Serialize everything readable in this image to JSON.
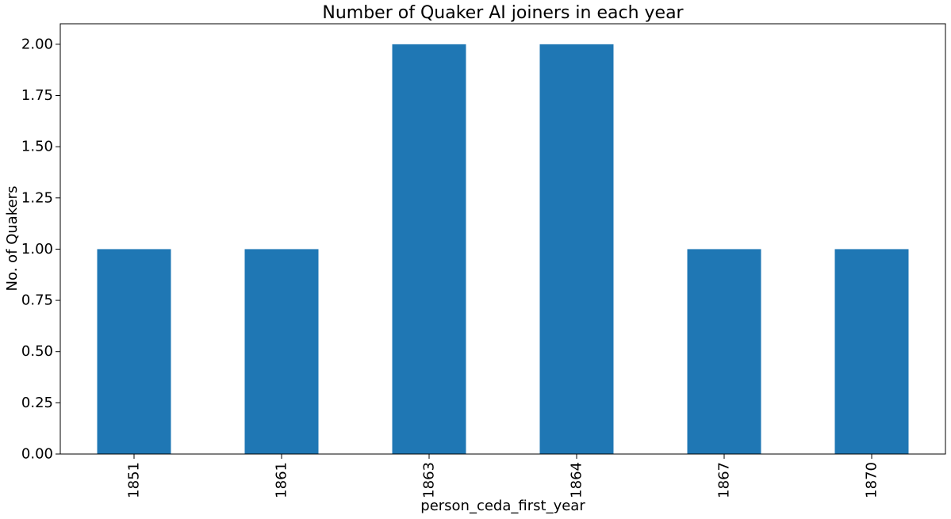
{
  "chart_data": {
    "type": "bar",
    "title": "Number of Quaker AI joiners in each year",
    "xlabel": "person_ceda_first_year",
    "ylabel": "No. of Quakers",
    "categories": [
      "1851",
      "1861",
      "1863",
      "1864",
      "1867",
      "1870"
    ],
    "values": [
      1,
      1,
      2,
      2,
      1,
      1
    ],
    "ylim": [
      0,
      2.1
    ],
    "yticks": [
      "0.00",
      "0.25",
      "0.50",
      "0.75",
      "1.00",
      "1.25",
      "1.50",
      "1.75",
      "2.00"
    ],
    "grid": false,
    "legend": "none",
    "bar_color": "#1f77b4"
  }
}
